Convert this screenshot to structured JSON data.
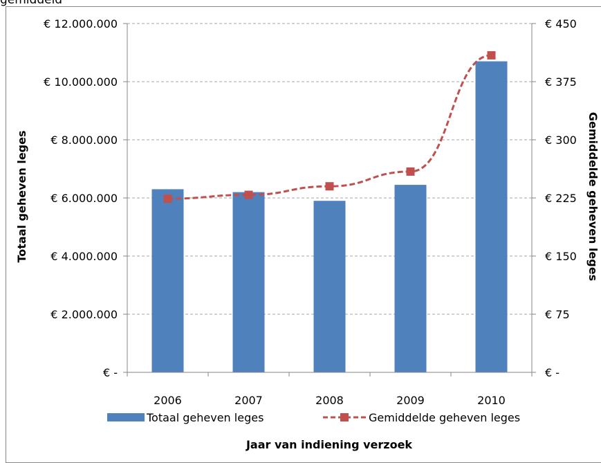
{
  "top_caption": "gemiddeld",
  "colors": {
    "bar": "#4f81bd",
    "line": "#c0504d",
    "grid": "#a6a6a6",
    "axis": "#868686"
  },
  "chart_data": {
    "type": "bar",
    "categories": [
      "2006",
      "2007",
      "2008",
      "2009",
      "2010"
    ],
    "series": [
      {
        "name": "Totaal geheven leges",
        "type": "bar",
        "axis": "left",
        "values": [
          6300000,
          6200000,
          5900000,
          6450000,
          10700000
        ]
      },
      {
        "name": "Gemiddelde geheven leges",
        "type": "line",
        "axis": "right",
        "line_style": "dashed",
        "marker": "square",
        "values": [
          224,
          229,
          240,
          259,
          409
        ]
      }
    ],
    "xlabel": "Jaar van indiening verzoek",
    "ylabel": "Totaal geheven leges",
    "ylabel_right": "Gemiddelde geheven leges",
    "ylim": [
      0,
      12000000
    ],
    "ylim_right": [
      0,
      450
    ],
    "yticks": [
      {
        "value": 0,
        "label": "€ -"
      },
      {
        "value": 2000000,
        "label": "€ 2.000.000"
      },
      {
        "value": 4000000,
        "label": "€ 4.000.000"
      },
      {
        "value": 6000000,
        "label": "€ 6.000.000"
      },
      {
        "value": 8000000,
        "label": "€ 8.000.000"
      },
      {
        "value": 10000000,
        "label": "€ 10.000.000"
      },
      {
        "value": 12000000,
        "label": "€ 12.000.000"
      }
    ],
    "yticks_right": [
      {
        "value": 0,
        "label": "€ -"
      },
      {
        "value": 75,
        "label": "€ 75"
      },
      {
        "value": 150,
        "label": "€ 150"
      },
      {
        "value": 225,
        "label": "€ 225"
      },
      {
        "value": 300,
        "label": "€ 300"
      },
      {
        "value": 375,
        "label": "€ 375"
      },
      {
        "value": 450,
        "label": "€ 450"
      }
    ],
    "grid": true,
    "legend_position": "bottom"
  }
}
